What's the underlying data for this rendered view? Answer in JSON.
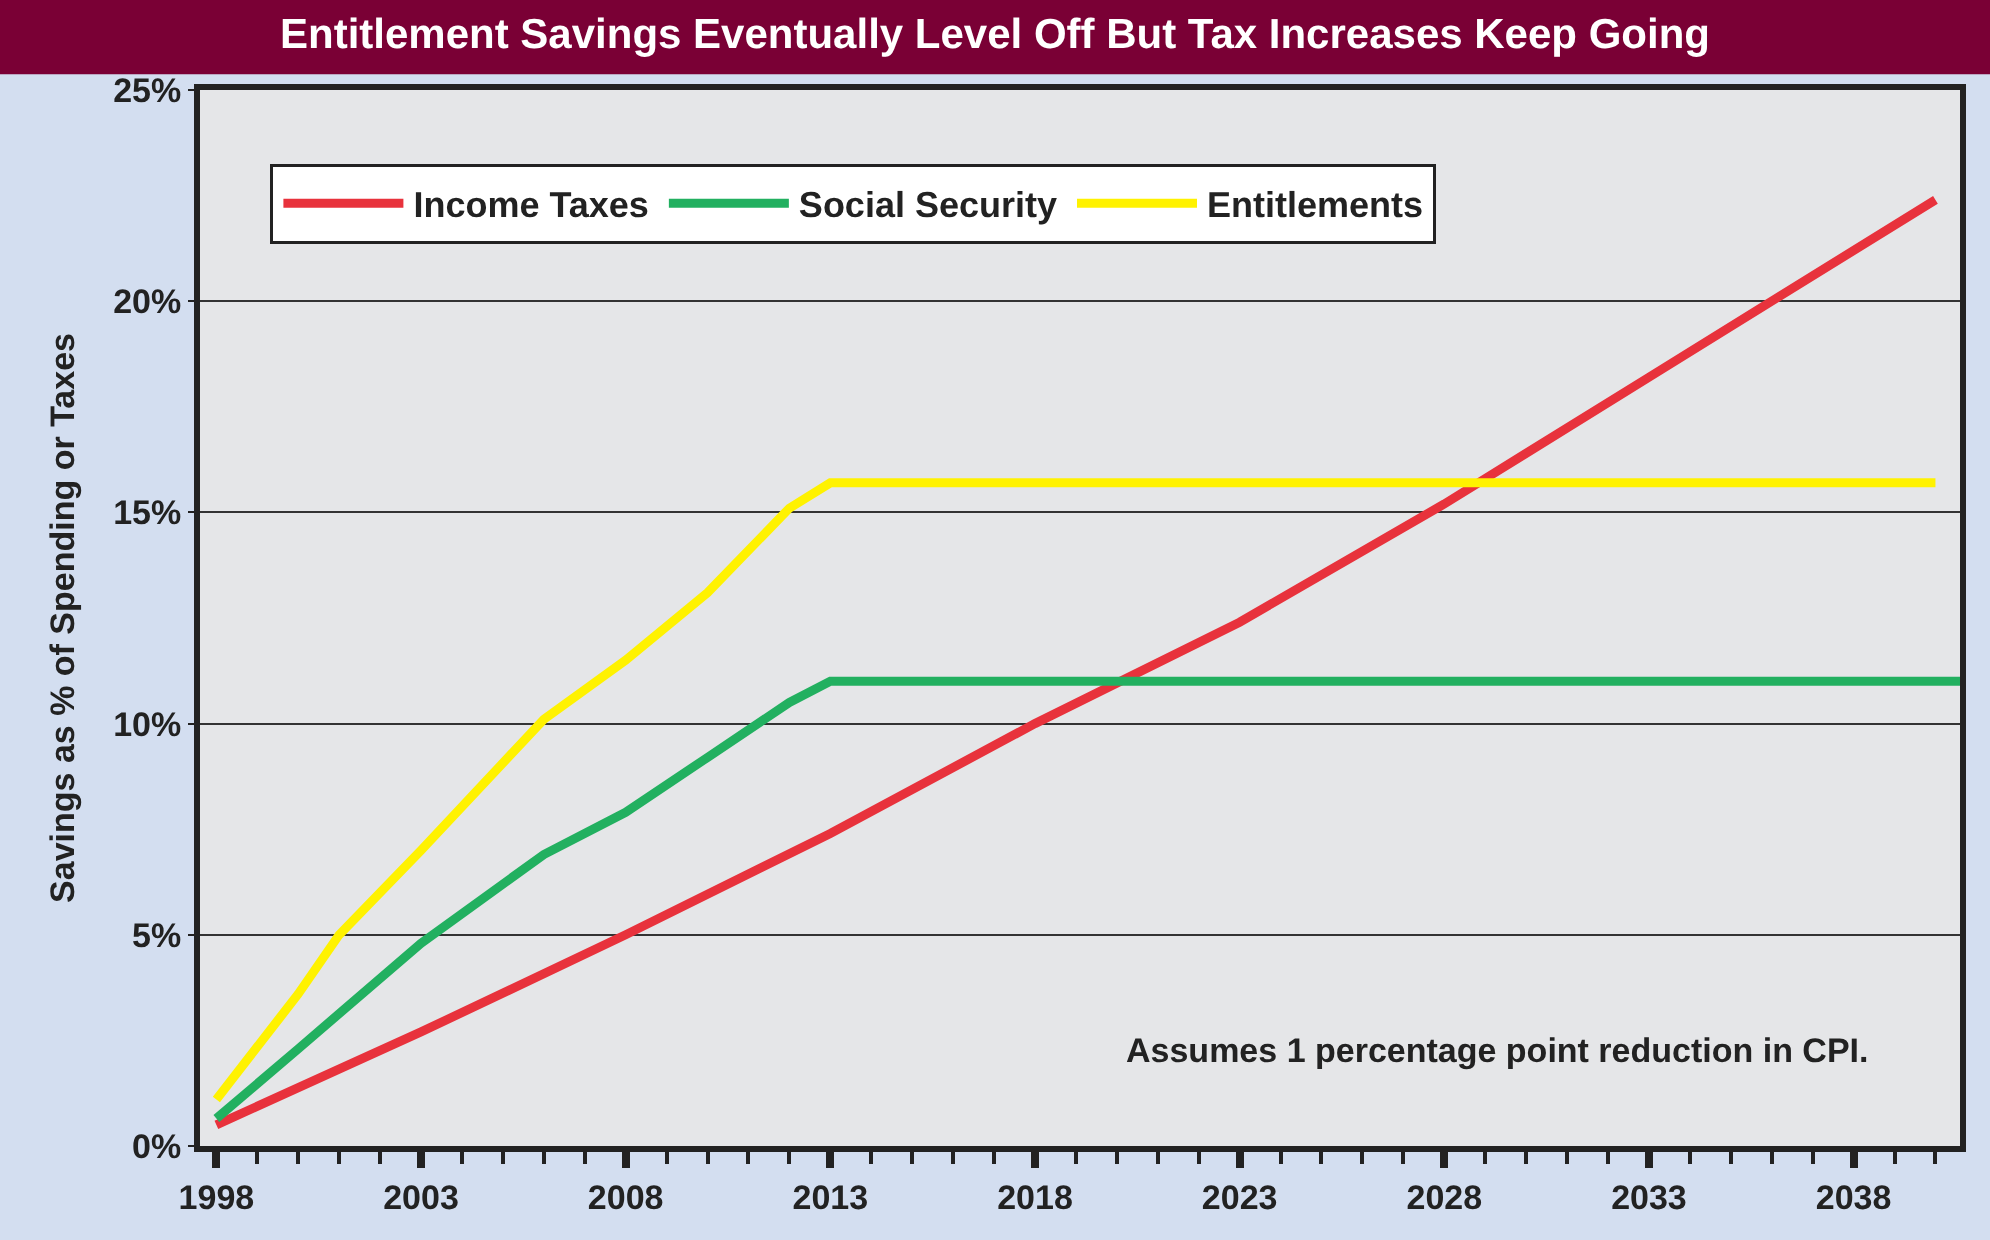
{
  "chart_data": {
    "type": "line",
    "title": "Entitlement Savings Eventually Level Off But Tax Increases Keep Going",
    "ylabel": "Savings as % of Spending or Taxes",
    "annotations": [
      "Assumes 1 percentage point reduction in CPI."
    ],
    "series": [
      {
        "name": "Income Taxes",
        "color": "#e8323c",
        "x": [
          1998,
          2003,
          2008,
          2013,
          2018,
          2023,
          2028,
          2033,
          2040
        ],
        "values": [
          0.5,
          2.7,
          5.0,
          7.4,
          10.0,
          12.4,
          15.2,
          18.2,
          22.4
        ]
      },
      {
        "name": "Social Security",
        "color": "#22b060",
        "x": [
          1998,
          2000,
          2003,
          2006,
          2008,
          2010,
          2012,
          2013,
          2040.6
        ],
        "values": [
          0.65,
          2.3,
          4.8,
          6.9,
          7.9,
          9.2,
          10.5,
          11.0,
          11.0
        ]
      },
      {
        "name": "Entitlements",
        "color": "#fff200",
        "x": [
          1998,
          2000,
          2001,
          2003,
          2006,
          2008,
          2010,
          2012,
          2013,
          2040
        ],
        "values": [
          1.1,
          3.6,
          5.0,
          7.0,
          10.1,
          11.5,
          13.1,
          15.1,
          15.7,
          15.7
        ]
      }
    ],
    "xlim": [
      1997.6,
      2040.6
    ],
    "xticks": [
      1998,
      {
        "value": 1999,
        "label": null
      },
      {
        "value": 2000,
        "label": null
      },
      {
        "value": 2001,
        "label": null
      },
      {
        "value": 2002,
        "label": null
      },
      2003,
      {
        "value": 2004,
        "label": null
      },
      {
        "value": 2005,
        "label": null
      },
      {
        "value": 2006,
        "label": null
      },
      {
        "value": 2007,
        "label": null
      },
      2008,
      {
        "value": 2009,
        "label": null
      },
      {
        "value": 2010,
        "label": null
      },
      {
        "value": 2011,
        "label": null
      },
      {
        "value": 2012,
        "label": null
      },
      2013,
      {
        "value": 2014,
        "label": null
      },
      {
        "value": 2015,
        "label": null
      },
      {
        "value": 2016,
        "label": null
      },
      {
        "value": 2017,
        "label": null
      },
      2018,
      {
        "value": 2019,
        "label": null
      },
      {
        "value": 2020,
        "label": null
      },
      {
        "value": 2021,
        "label": null
      },
      {
        "value": 2022,
        "label": null
      },
      2023,
      {
        "value": 2024,
        "label": null
      },
      {
        "value": 2025,
        "label": null
      },
      {
        "value": 2026,
        "label": null
      },
      {
        "value": 2027,
        "label": null
      },
      2028,
      {
        "value": 2029,
        "label": null
      },
      {
        "value": 2030,
        "label": null
      },
      {
        "value": 2031,
        "label": null
      },
      {
        "value": 2032,
        "label": null
      },
      2033,
      {
        "value": 2034,
        "label": null
      },
      {
        "value": 2035,
        "label": null
      },
      {
        "value": 2036,
        "label": null
      },
      {
        "value": 2037,
        "label": null
      },
      2038,
      {
        "value": 2039,
        "label": null
      },
      {
        "value": 2040,
        "label": null
      }
    ],
    "ylim": [
      0,
      25
    ],
    "yticks": [
      {
        "value": 0,
        "label": "0%"
      },
      {
        "value": 5,
        "label": "5%"
      },
      {
        "value": 10,
        "label": "10%"
      },
      {
        "value": 15,
        "label": "15%"
      },
      {
        "value": 20,
        "label": "20%"
      },
      {
        "value": 25,
        "label": "25%"
      }
    ],
    "grid": "y",
    "legend": "top left",
    "marker": "none",
    "line_style": "solid"
  }
}
